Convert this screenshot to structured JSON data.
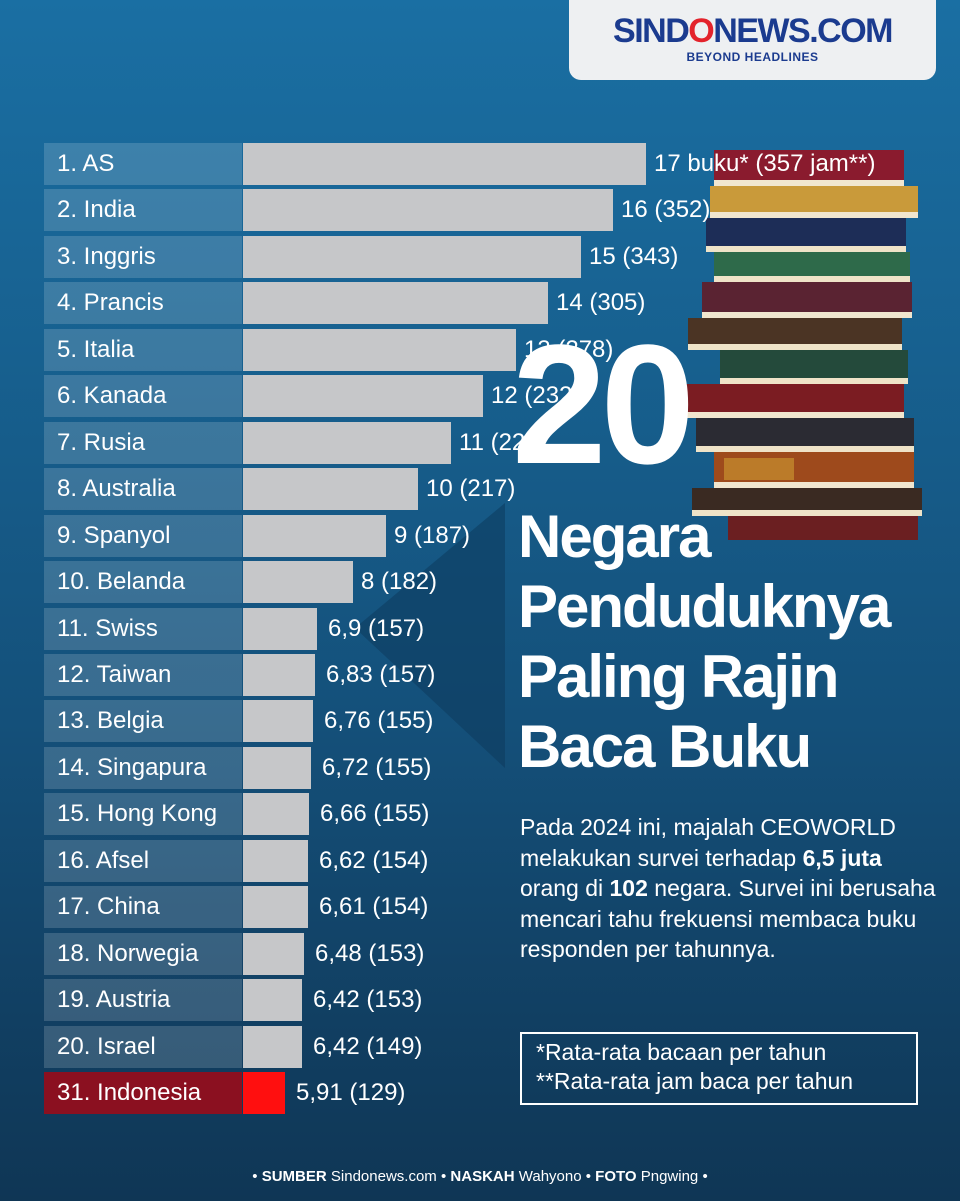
{
  "logo": {
    "brand_left": "SIND",
    "brand_o": "O",
    "brand_right": "NEWS.COM",
    "tagline": "BEYOND HEADLINES"
  },
  "chart_data": {
    "type": "bar",
    "orientation": "horizontal",
    "categories": [
      "1. AS",
      "2. India",
      "3. Inggris",
      "4. Prancis",
      "5. Italia",
      "6. Kanada",
      "7. Rusia",
      "8. Australia",
      "9. Spanyol",
      "10. Belanda",
      "11. Swiss",
      "12. Taiwan",
      "13. Belgia",
      "14. Singapura",
      "15. Hong Kong",
      "16. Afsel",
      "17. China",
      "18. Norwegia",
      "19. Austria",
      "20. Israel",
      "31. Indonesia"
    ],
    "series": [
      {
        "values": [
          17,
          16,
          15,
          14,
          13,
          12,
          11,
          10,
          9,
          8,
          6.9,
          6.83,
          6.76,
          6.72,
          6.66,
          6.62,
          6.61,
          6.48,
          6.42,
          6.42,
          5.91
        ]
      },
      {
        "values": [
          357,
          352,
          343,
          305,
          278,
          232,
          223,
          217,
          187,
          182,
          157,
          157,
          155,
          155,
          155,
          154,
          154,
          153,
          153,
          149,
          129
        ]
      }
    ],
    "value_labels": [
      "17 buku* (357 jam**)",
      "16 (352)",
      "15 (343)",
      "14 (305)",
      "13 (278)",
      "12 (232)",
      "11 (223)",
      "10 (217)",
      "9 (187)",
      "8 (182)",
      "6,9 (157)",
      "6,83 (157)",
      "6,76 (155)",
      "6,72 (155)",
      "6,66 (155)",
      "6,62 (154)",
      "6,61 (154)",
      "6,48 (153)",
      "6,42 (153)",
      "6,42 (149)",
      "5,91 (129)"
    ],
    "highlight_index": 20,
    "colors": {
      "bar": "#c6c7c9",
      "highlight_bar": "#ff0f0f",
      "highlight_label": "#8b1020"
    }
  },
  "headline": {
    "number": "20",
    "lines": [
      "Negara",
      "Penduduknya",
      "Paling Rajin",
      "Baca Buku"
    ]
  },
  "description": {
    "part1": "Pada 2024 ini, majalah CEOWORLD melakukan survei terhadap ",
    "bold1": "6,5 juta",
    "part2": " orang di ",
    "bold2": "102",
    "part3": " negara. Survei ini berusaha mencari tahu frekuensi membaca buku responden per tahunnya."
  },
  "notes": [
    "*Rata-rata bacaan per tahun",
    "**Rata-rata jam baca per tahun"
  ],
  "footer": {
    "bullet": "•",
    "source_label": "SUMBER",
    "source_value": "Sindonews.com",
    "writer_label": "NASKAH",
    "writer_value": "Wahyono",
    "photo_label": "FOTO",
    "photo_value": "Pngwing"
  }
}
